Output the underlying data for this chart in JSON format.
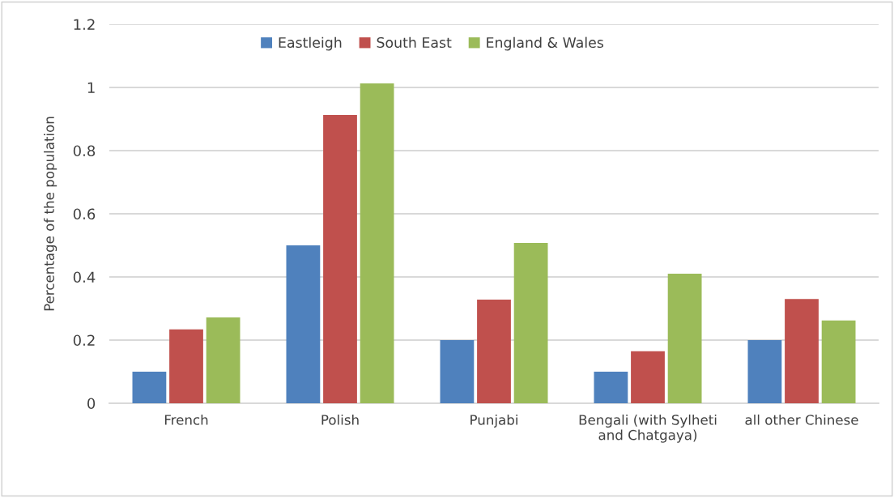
{
  "chart_data": {
    "type": "bar",
    "categories": [
      "French",
      "Polish",
      "Punjabi",
      "Bengali (with Sylheti\nand Chatgaya)",
      "all other Chinese"
    ],
    "series": [
      {
        "name": "Eastleigh",
        "color": "#4f81bd",
        "values": [
          0.1,
          0.5,
          0.2,
          0.1,
          0.2
        ]
      },
      {
        "name": "South East",
        "color": "#c0504d",
        "values": [
          0.234,
          0.913,
          0.328,
          0.165,
          0.33
        ]
      },
      {
        "name": "England & Wales",
        "color": "#9bbb59",
        "values": [
          0.272,
          1.013,
          0.508,
          0.41,
          0.262
        ]
      }
    ],
    "ylabel": "Percentage of the population",
    "ylim": [
      0,
      1.2
    ],
    "yticks": [
      0,
      0.2,
      0.4,
      0.6,
      0.8,
      1,
      1.2
    ],
    "grid": "y",
    "legend": "top"
  }
}
